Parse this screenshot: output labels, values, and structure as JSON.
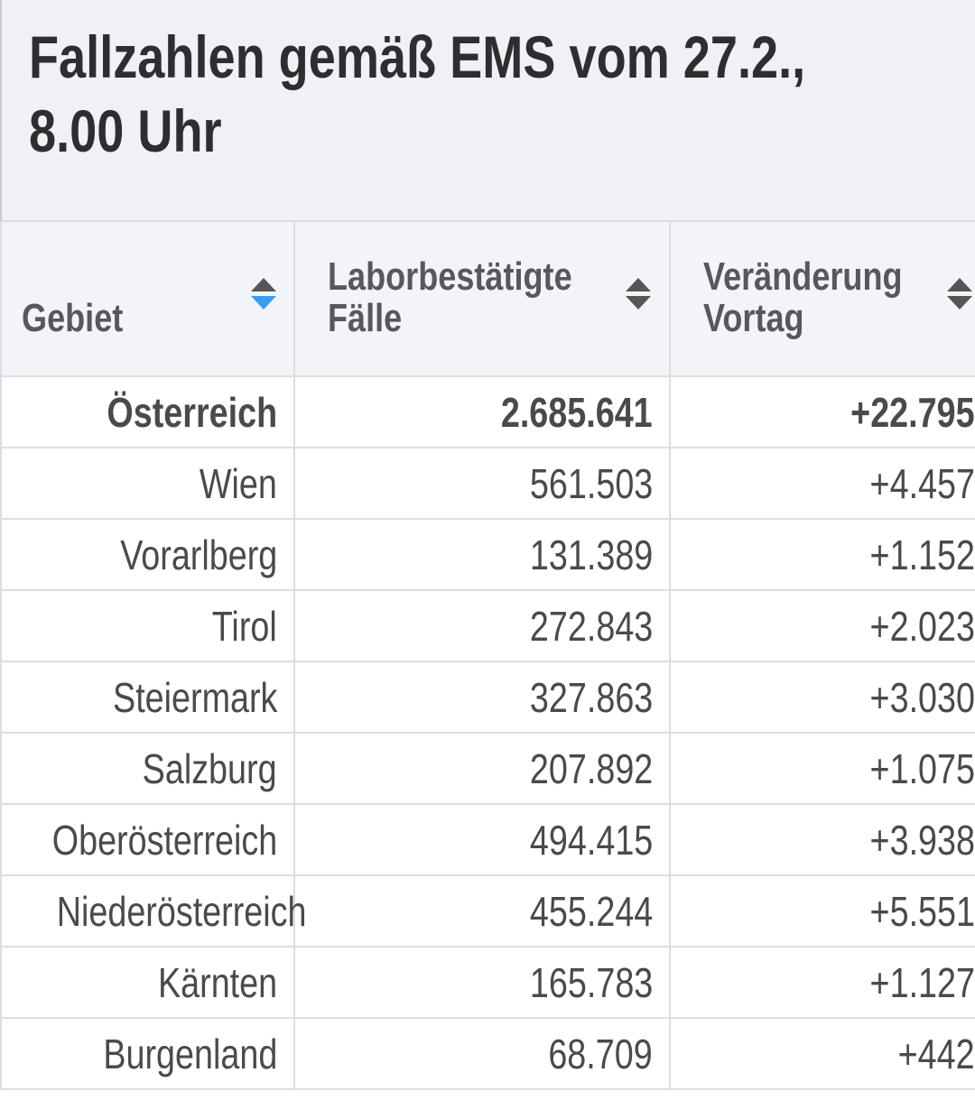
{
  "title_line1": "Fallzahlen gemäß EMS vom 27.2.,",
  "title_line2": "8.00 Uhr",
  "columns": [
    {
      "line1": "Gebiet",
      "line2": "",
      "sort": "ascending"
    },
    {
      "line1": "Laborbestätigte",
      "line2": "Fälle",
      "sort": "none"
    },
    {
      "line1": "Veränderung",
      "line2": "Vortag",
      "sort": "none"
    }
  ],
  "colors": {
    "sort_active": "#3a9cf0",
    "sort_inactive": "#555555",
    "header_bg": "#f0f1f6"
  },
  "rows": [
    {
      "gebiet": "Österreich",
      "faelle": "2.685.641",
      "veraenderung": "+22.795",
      "bold": true
    },
    {
      "gebiet": "Wien",
      "faelle": "561.503",
      "veraenderung": "+4.457"
    },
    {
      "gebiet": "Vorarlberg",
      "faelle": "131.389",
      "veraenderung": "+1.152"
    },
    {
      "gebiet": "Tirol",
      "faelle": "272.843",
      "veraenderung": "+2.023"
    },
    {
      "gebiet": "Steiermark",
      "faelle": "327.863",
      "veraenderung": "+3.030"
    },
    {
      "gebiet": "Salzburg",
      "faelle": "207.892",
      "veraenderung": "+1.075"
    },
    {
      "gebiet": "Oberösterreich",
      "faelle": "494.415",
      "veraenderung": "+3.938"
    },
    {
      "gebiet": "Niederösterreich",
      "faelle": "455.244",
      "veraenderung": "+5.551"
    },
    {
      "gebiet": "Kärnten",
      "faelle": "165.783",
      "veraenderung": "+1.127"
    },
    {
      "gebiet": "Burgenland",
      "faelle": "68.709",
      "veraenderung": "+442"
    }
  ]
}
